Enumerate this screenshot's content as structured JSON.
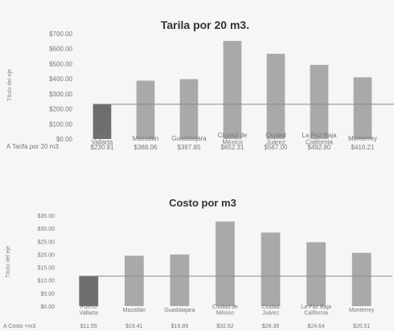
{
  "chart_data": [
    {
      "type": "bar",
      "title": "Tarila por 20 m3.",
      "ylabel": "Título del eje",
      "ylim": [
        0,
        700
      ],
      "yticks": [
        "$0.00",
        "$100.00",
        "$200.00",
        "$300.00",
        "$400.00",
        "$500.00",
        "$600.00",
        "$700.00"
      ],
      "categories": [
        "Puerto Vallarta",
        "Mazatlán",
        "Guadalajara",
        "Ciudad de México",
        "Ciudad Juárez",
        "La Paz Baja California",
        "Monterrey"
      ],
      "values": [
        230.91,
        388.06,
        397.85,
        652.31,
        567.0,
        492.8,
        410.21
      ],
      "table_row_label": "A Tarifa por 20 m3.",
      "value_labels": [
        "$230.91",
        "$388.06",
        "$397.85",
        "$652.31",
        "$567.00",
        "$492.80",
        "$410.21"
      ],
      "reference_line": 230.91,
      "grid": false,
      "colors": {
        "highlight": "#6e6e6e",
        "bar": "#a9a9a9",
        "line": "#8a8a8a"
      }
    },
    {
      "type": "bar",
      "title": "Costo por m3",
      "ylabel": "Título del eje",
      "ylim": [
        0,
        35
      ],
      "yticks": [
        "$0.00",
        "$5.00",
        "$10.00",
        "$15.00",
        "$20.00",
        "$25.00",
        "$30.00",
        "$35.00"
      ],
      "categories": [
        "Puerto Vallarta",
        "Mazatlán",
        "Guadalajara",
        "Ciudad de México",
        "Ciudad Juárez",
        "La Paz Baja California",
        "Monterrey"
      ],
      "values": [
        11.55,
        19.41,
        19.89,
        32.62,
        28.35,
        24.64,
        20.51
      ],
      "table_row_label": "A Costo ×m3",
      "value_labels": [
        "$11.55",
        "$19.41",
        "$19.89",
        "$32.62",
        "$28.35",
        "$24.64",
        "$20.51"
      ],
      "reference_line": 11.55,
      "grid": false,
      "colors": {
        "highlight": "#6e6e6e",
        "bar": "#a9a9a9",
        "line": "#8a8a8a"
      }
    }
  ]
}
